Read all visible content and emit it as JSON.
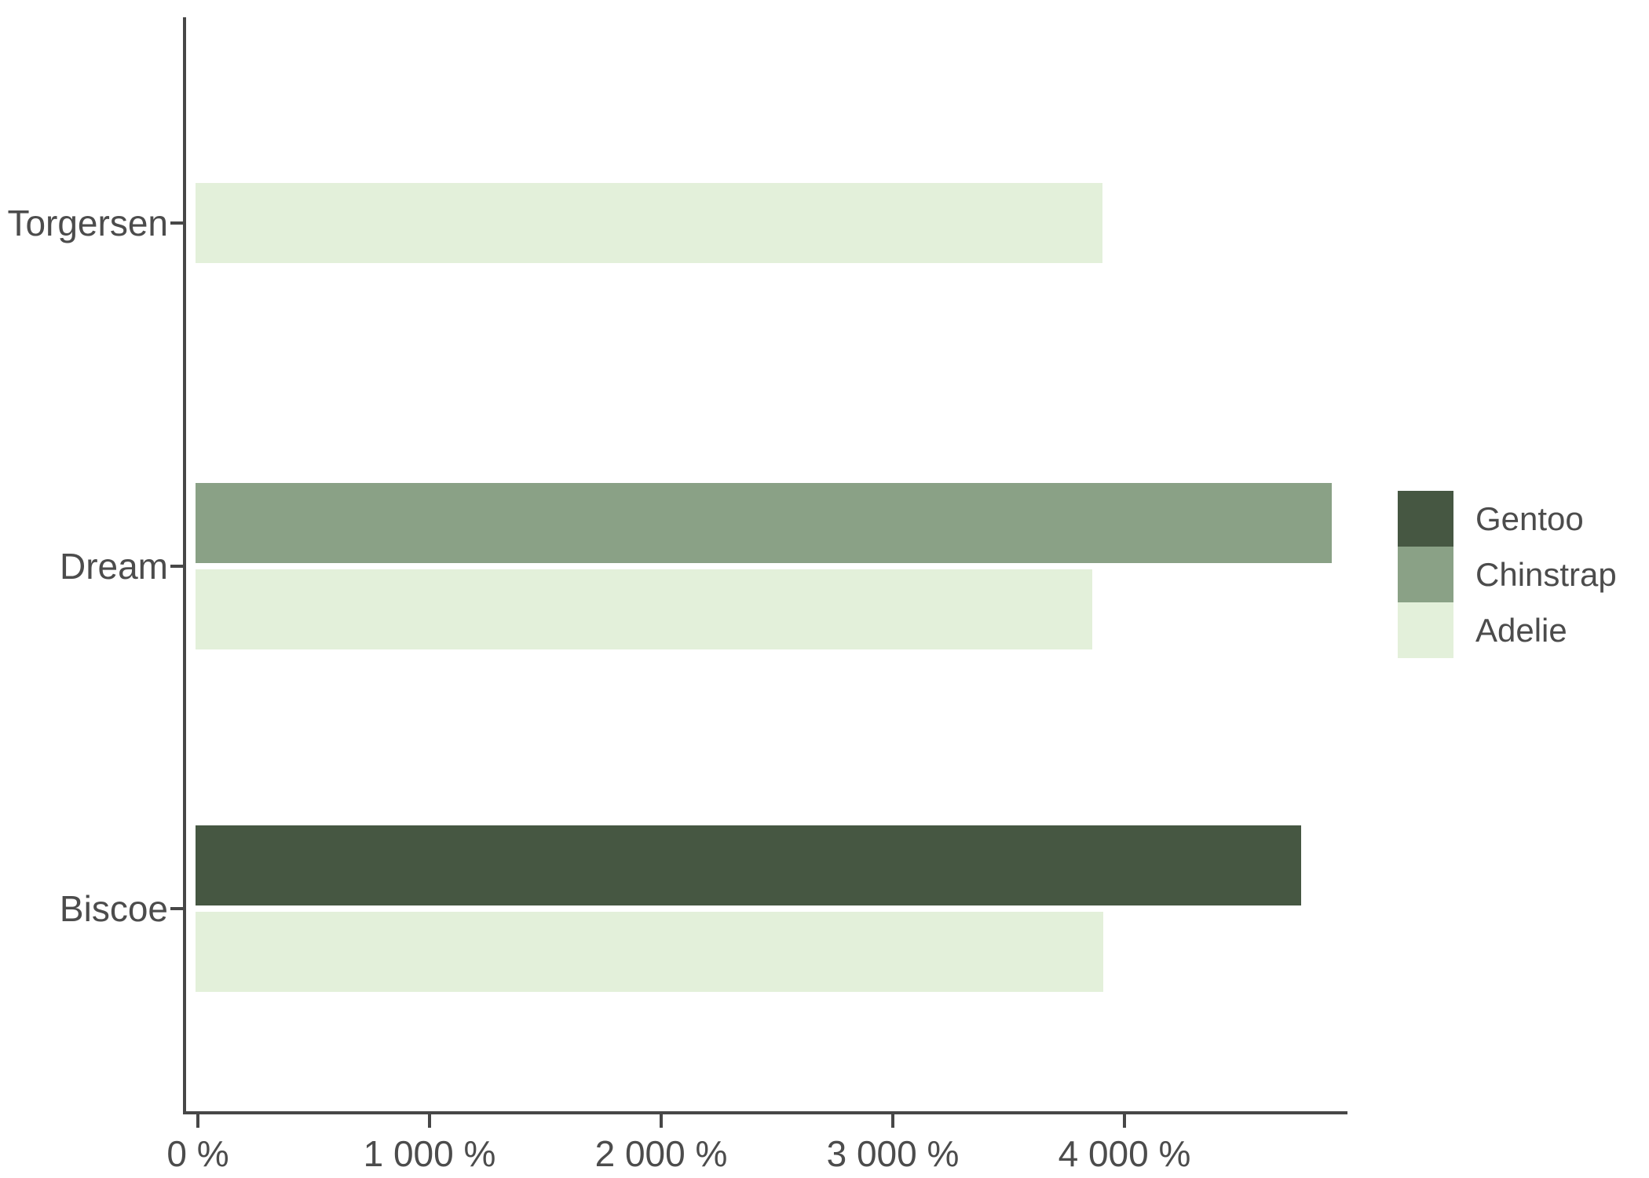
{
  "chart_data": {
    "type": "bar",
    "orientation": "horizontal",
    "title": "",
    "xlabel": "",
    "ylabel": "",
    "grid": false,
    "categories": [
      "Torgersen",
      "Dream",
      "Biscoe"
    ],
    "series": [
      {
        "name": "Gentoo",
        "values": [
          null,
          null,
          4763
        ]
      },
      {
        "name": "Chinstrap",
        "values": [
          null,
          4895,
          null
        ]
      },
      {
        "name": "Adelie",
        "values": [
          3905,
          3861,
          3908
        ]
      }
    ],
    "groups": [
      {
        "island": "Torgersen",
        "bars": [
          {
            "species": "Adelie",
            "value": 3905
          }
        ]
      },
      {
        "island": "Dream",
        "bars": [
          {
            "species": "Chinstrap",
            "value": 4895
          },
          {
            "species": "Adelie",
            "value": 3861
          }
        ]
      },
      {
        "island": "Biscoe",
        "bars": [
          {
            "species": "Gentoo",
            "value": 4763
          },
          {
            "species": "Adelie",
            "value": 3908
          }
        ]
      }
    ],
    "x_range": [
      0,
      4950
    ],
    "x_ticks": [
      {
        "value": 0,
        "label": "0 %"
      },
      {
        "value": 1000,
        "label": "1 000 %"
      },
      {
        "value": 2000,
        "label": "2 000 %"
      },
      {
        "value": 3000,
        "label": "3 000 %"
      },
      {
        "value": 4000,
        "label": "4 000 %"
      }
    ],
    "legend": {
      "position": "right",
      "entries": [
        "Gentoo",
        "Chinstrap",
        "Adelie"
      ]
    },
    "colors": {
      "Gentoo": "#465742",
      "Chinstrap": "#8AA186",
      "Adelie": "#E3F0DA"
    },
    "axis_color": "#474747",
    "text_color": "#4c4c4c"
  }
}
